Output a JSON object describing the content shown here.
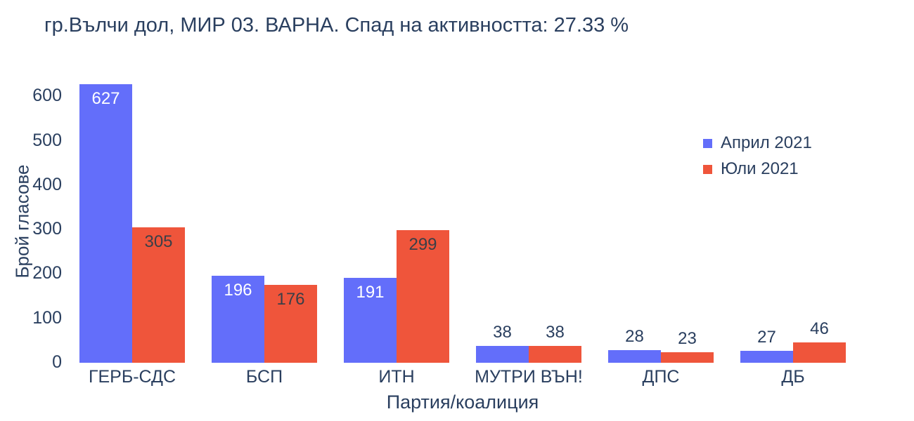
{
  "title": "гр.Вълчи дол, МИР 03. ВАРНА. Спад на активността: 27.33 %",
  "chart_data": {
    "type": "bar",
    "categories": [
      "ГЕРБ-СДС",
      "БСП",
      "ИТН",
      "МУТРИ ВЪН!",
      "ДПС",
      "ДБ"
    ],
    "series": [
      {
        "name": "Април 2021",
        "color": "#636EFA",
        "values": [
          627,
          196,
          191,
          38,
          28,
          27
        ]
      },
      {
        "name": "Юли 2021",
        "color": "#EF553B",
        "values": [
          305,
          176,
          299,
          38,
          23,
          46
        ]
      }
    ],
    "xlabel": "Партия/коалиция",
    "ylabel": "Брой гласове",
    "ylim": [
      0,
      640
    ],
    "yticks": [
      0,
      100,
      200,
      300,
      400,
      500,
      600
    ],
    "grid": false,
    "legend_position": "inside-right",
    "label_placement": "inside-top for tall bars, above for short bars",
    "colors": {
      "background": "#ffffff",
      "text": "#2a3f5f",
      "inside_label_on_blue": "#ffffff",
      "inside_label_on_red": "#3a3f47"
    }
  }
}
